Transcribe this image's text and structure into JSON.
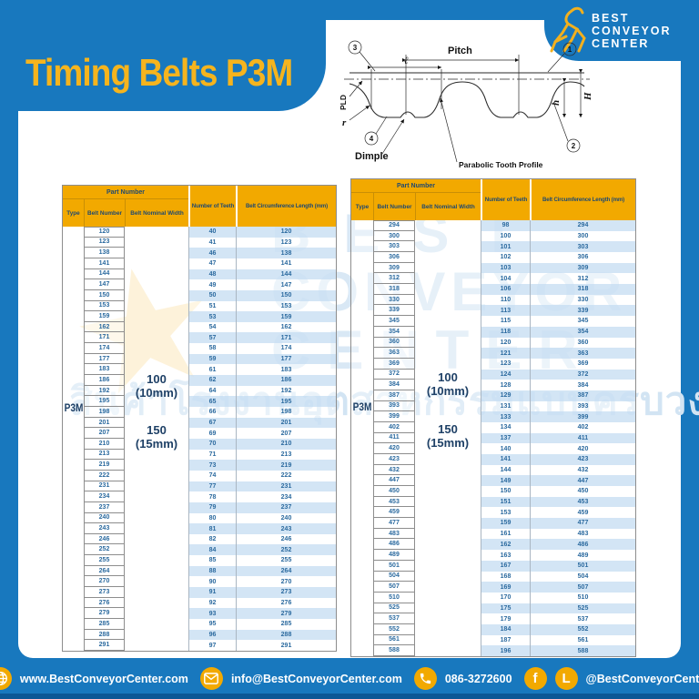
{
  "header": {
    "title": "Timing Belts P3M",
    "logo": {
      "line1": "BEST",
      "line2": "CONVEYOR",
      "line3": "CENTER"
    }
  },
  "diagram": {
    "pitch": "Pitch",
    "tooth_width": "ℓ",
    "pld": "PLD",
    "radius": "r",
    "dimple": "Dimple",
    "profile": "Parabolic Tooth Profile",
    "tooth_height": "h",
    "belt_height": "H",
    "callout_1": "1",
    "callout_2": "2",
    "callout_3": "3",
    "callout_4": "4"
  },
  "table_headers": {
    "part_number": "Part Number",
    "type": "Type",
    "belt_number": "Belt Number",
    "belt_nominal_width": "Belt Nominal Width",
    "number_of_teeth": "Number of Teeth",
    "belt_circumference": "Belt Circumference Length (mm)"
  },
  "tables": [
    {
      "type": "P3M",
      "widths": [
        {
          "value": "100",
          "unit": "(10mm)"
        },
        {
          "value": "150",
          "unit": "(15mm)"
        }
      ],
      "rows": [
        [
          120,
          40,
          120
        ],
        [
          123,
          41,
          123
        ],
        [
          138,
          46,
          138
        ],
        [
          141,
          47,
          141
        ],
        [
          144,
          48,
          144
        ],
        [
          147,
          49,
          147
        ],
        [
          150,
          50,
          150
        ],
        [
          153,
          51,
          153
        ],
        [
          159,
          53,
          159
        ],
        [
          162,
          54,
          162
        ],
        [
          171,
          57,
          171
        ],
        [
          174,
          58,
          174
        ],
        [
          177,
          59,
          177
        ],
        [
          183,
          61,
          183
        ],
        [
          186,
          62,
          186
        ],
        [
          192,
          64,
          192
        ],
        [
          195,
          65,
          195
        ],
        [
          198,
          66,
          198
        ],
        [
          201,
          67,
          201
        ],
        [
          207,
          69,
          207
        ],
        [
          210,
          70,
          210
        ],
        [
          213,
          71,
          213
        ],
        [
          219,
          73,
          219
        ],
        [
          222,
          74,
          222
        ],
        [
          231,
          77,
          231
        ],
        [
          234,
          78,
          234
        ],
        [
          237,
          79,
          237
        ],
        [
          240,
          80,
          240
        ],
        [
          243,
          81,
          243
        ],
        [
          246,
          82,
          246
        ],
        [
          252,
          84,
          252
        ],
        [
          255,
          85,
          255
        ],
        [
          264,
          88,
          264
        ],
        [
          270,
          90,
          270
        ],
        [
          273,
          91,
          273
        ],
        [
          276,
          92,
          276
        ],
        [
          279,
          93,
          279
        ],
        [
          285,
          95,
          285
        ],
        [
          288,
          96,
          288
        ],
        [
          291,
          97,
          291
        ]
      ]
    },
    {
      "type": "P3M",
      "widths": [
        {
          "value": "100",
          "unit": "(10mm)"
        },
        {
          "value": "150",
          "unit": "(15mm)"
        }
      ],
      "rows": [
        [
          294,
          98,
          294
        ],
        [
          300,
          100,
          300
        ],
        [
          303,
          101,
          303
        ],
        [
          306,
          102,
          306
        ],
        [
          309,
          103,
          309
        ],
        [
          312,
          104,
          312
        ],
        [
          318,
          106,
          318
        ],
        [
          330,
          110,
          330
        ],
        [
          339,
          113,
          339
        ],
        [
          345,
          115,
          345
        ],
        [
          354,
          118,
          354
        ],
        [
          360,
          120,
          360
        ],
        [
          363,
          121,
          363
        ],
        [
          369,
          123,
          369
        ],
        [
          372,
          124,
          372
        ],
        [
          384,
          128,
          384
        ],
        [
          387,
          129,
          387
        ],
        [
          393,
          131,
          393
        ],
        [
          399,
          133,
          399
        ],
        [
          402,
          134,
          402
        ],
        [
          411,
          137,
          411
        ],
        [
          420,
          140,
          420
        ],
        [
          423,
          141,
          423
        ],
        [
          432,
          144,
          432
        ],
        [
          447,
          149,
          447
        ],
        [
          450,
          150,
          450
        ],
        [
          453,
          151,
          453
        ],
        [
          459,
          153,
          459
        ],
        [
          477,
          159,
          477
        ],
        [
          483,
          161,
          483
        ],
        [
          486,
          162,
          486
        ],
        [
          489,
          163,
          489
        ],
        [
          501,
          167,
          501
        ],
        [
          504,
          168,
          504
        ],
        [
          507,
          169,
          507
        ],
        [
          510,
          170,
          510
        ],
        [
          525,
          175,
          525
        ],
        [
          537,
          179,
          537
        ],
        [
          552,
          184,
          552
        ],
        [
          561,
          187,
          561
        ],
        [
          588,
          196,
          588
        ]
      ]
    }
  ],
  "watermark": {
    "line1": "BEST",
    "line2": "CONVEYOR",
    "line3": "CENTER",
    "thai": "สินค้าโรงงานอุตสาหกรรมแบบครบวงจร"
  },
  "footer": {
    "website": "www.BestConveyorCenter.com",
    "email": "info@BestConveyorCenter.com",
    "phone": "086-3272600",
    "facebook_label": "f",
    "line_label": "L",
    "social_handle": "@BestConveyorCenter"
  },
  "colors": {
    "blue": "#1878BE",
    "gold": "#F2A900",
    "title_yellow": "#F5B41E",
    "navy_text": "#1F4970",
    "row_text": "#2B6A9F",
    "stripe": "#CBE0F3",
    "footer_dark": "#0C5795"
  }
}
